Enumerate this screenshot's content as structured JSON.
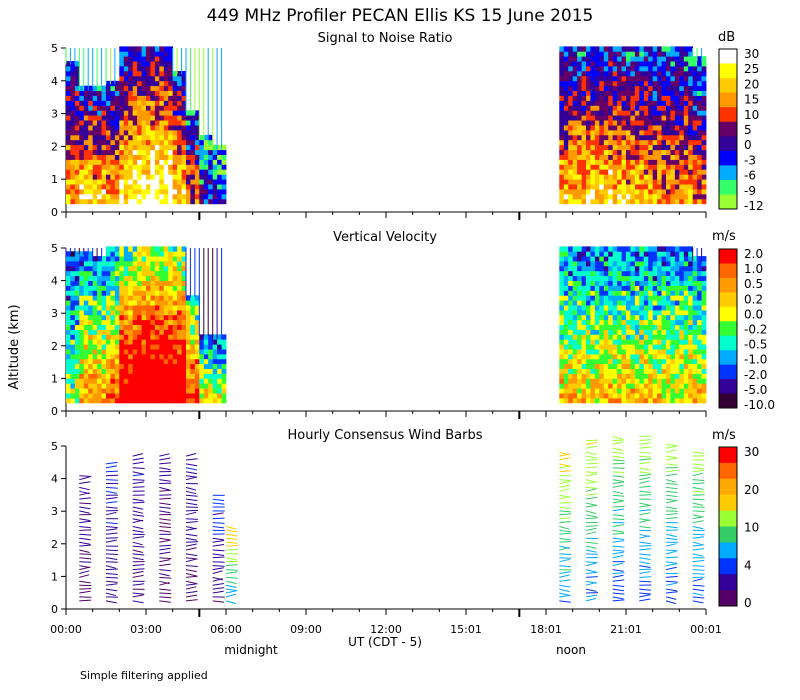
{
  "chart_data": {
    "type": "heatmap",
    "title": "449 MHz Profiler PECAN Ellis KS 15 June 2015",
    "ylabel": "Altitude (km)",
    "xlabel": "UT  (CDT - 5)",
    "x_ticks": [
      "00:00",
      "03:00",
      "06:00",
      "09:00",
      "12:00",
      "15:01",
      "18:01",
      "21:01",
      "00:01"
    ],
    "xlim_hours": [
      0,
      24
    ],
    "ylim_km": [
      0,
      5
    ],
    "y_ticks": [
      "0",
      "1",
      "2",
      "3",
      "4",
      "5"
    ],
    "time_markers": [
      {
        "label": "midnight",
        "hour": 5.0
      },
      {
        "label": "noon",
        "hour": 17.0
      }
    ],
    "footnote": "Simple filtering applied",
    "data_gap_hours": [
      6.0,
      18.5
    ],
    "panels": [
      {
        "title": "Signal to Noise Ratio",
        "units": "dB",
        "colorbar": {
          "labels": [
            "30",
            "25",
            "20",
            "15",
            "10",
            "5",
            "0",
            "-3",
            "-6",
            "-9",
            "-12"
          ],
          "colors": [
            "#ffffff",
            "#ffff00",
            "#ffcc00",
            "#ff9900",
            "#ff3300",
            "#660066",
            "#330099",
            "#0000ff",
            "#00aaff",
            "#33ff66",
            "#99ff33"
          ]
        },
        "profile": [
          {
            "hour": 0.25,
            "top_km": 4.5,
            "mean": 0.55
          },
          {
            "hour": 0.75,
            "top_km": 3.7,
            "mean": 0.62
          },
          {
            "hour": 1.25,
            "top_km": 3.8,
            "mean": 0.58
          },
          {
            "hour": 1.75,
            "top_km": 3.9,
            "mean": 0.55
          },
          {
            "hour": 2.25,
            "top_km": 5.0,
            "mean": 0.62
          },
          {
            "hour": 2.75,
            "top_km": 5.0,
            "mean": 0.68
          },
          {
            "hour": 3.25,
            "top_km": 5.0,
            "mean": 0.72
          },
          {
            "hour": 3.75,
            "top_km": 5.0,
            "mean": 0.7
          },
          {
            "hour": 4.25,
            "top_km": 4.2,
            "mean": 0.6
          },
          {
            "hour": 4.75,
            "top_km": 3.0,
            "mean": 0.45
          },
          {
            "hour": 5.25,
            "top_km": 2.2,
            "mean": 0.3
          },
          {
            "hour": 5.75,
            "top_km": 1.9,
            "mean": 0.25
          },
          {
            "hour": 18.75,
            "top_km": 5.0,
            "mean": 0.55
          },
          {
            "hour": 19.25,
            "top_km": 5.0,
            "mean": 0.58
          },
          {
            "hour": 19.75,
            "top_km": 5.0,
            "mean": 0.6
          },
          {
            "hour": 20.25,
            "top_km": 5.0,
            "mean": 0.6
          },
          {
            "hour": 20.75,
            "top_km": 5.0,
            "mean": 0.58
          },
          {
            "hour": 21.25,
            "top_km": 5.0,
            "mean": 0.55
          },
          {
            "hour": 21.75,
            "top_km": 5.0,
            "mean": 0.55
          },
          {
            "hour": 22.25,
            "top_km": 5.0,
            "mean": 0.52
          },
          {
            "hour": 22.75,
            "top_km": 5.0,
            "mean": 0.5
          },
          {
            "hour": 23.25,
            "top_km": 5.0,
            "mean": 0.5
          },
          {
            "hour": 23.75,
            "top_km": 4.6,
            "mean": 0.45
          }
        ]
      },
      {
        "title": "Vertical Velocity",
        "units": "m/s",
        "colorbar": {
          "labels": [
            "2.0",
            "1.0",
            "0.5",
            "0.2",
            "0.0",
            "-0.2",
            "-0.5",
            "-1.0",
            "-2.0",
            "-5.0",
            "-10.0"
          ],
          "colors": [
            "#ff0000",
            "#ff6600",
            "#ff9900",
            "#ffcc00",
            "#ffff00",
            "#33ff33",
            "#00ffcc",
            "#00aaff",
            "#0033ff",
            "#330099",
            "#330033"
          ]
        },
        "profile": [
          {
            "hour": 0.25,
            "top_km": 4.8,
            "mean": 0.4
          },
          {
            "hour": 0.75,
            "top_km": 4.8,
            "mean": 0.55
          },
          {
            "hour": 1.25,
            "top_km": 4.6,
            "mean": 0.55
          },
          {
            "hour": 1.75,
            "top_km": 5.0,
            "mean": 0.6
          },
          {
            "hour": 2.25,
            "top_km": 5.0,
            "mean": 0.8
          },
          {
            "hour": 2.75,
            "top_km": 5.0,
            "mean": 0.88
          },
          {
            "hour": 3.25,
            "top_km": 5.0,
            "mean": 0.92
          },
          {
            "hour": 3.75,
            "top_km": 5.0,
            "mean": 0.9
          },
          {
            "hour": 4.25,
            "top_km": 5.0,
            "mean": 0.85
          },
          {
            "hour": 4.75,
            "top_km": 3.5,
            "mean": 0.7
          },
          {
            "hour": 5.25,
            "top_km": 2.3,
            "mean": 0.5
          },
          {
            "hour": 5.75,
            "top_km": 2.2,
            "mean": 0.45
          },
          {
            "hour": 18.75,
            "top_km": 5.0,
            "mean": 0.5
          },
          {
            "hour": 19.25,
            "top_km": 5.0,
            "mean": 0.5
          },
          {
            "hour": 19.75,
            "top_km": 5.0,
            "mean": 0.48
          },
          {
            "hour": 20.25,
            "top_km": 5.0,
            "mean": 0.5
          },
          {
            "hour": 20.75,
            "top_km": 5.0,
            "mean": 0.5
          },
          {
            "hour": 21.25,
            "top_km": 5.0,
            "mean": 0.5
          },
          {
            "hour": 21.75,
            "top_km": 5.0,
            "mean": 0.5
          },
          {
            "hour": 22.25,
            "top_km": 5.0,
            "mean": 0.48
          },
          {
            "hour": 22.75,
            "top_km": 5.0,
            "mean": 0.48
          },
          {
            "hour": 23.25,
            "top_km": 5.0,
            "mean": 0.5
          },
          {
            "hour": 23.75,
            "top_km": 4.6,
            "mean": 0.5
          }
        ]
      },
      {
        "title": "Hourly Consensus Wind Barbs",
        "units": "m/s",
        "colorbar": {
          "labels": [
            "30",
            "20",
            "10",
            "4",
            "0"
          ],
          "colors": [
            "#ff0000",
            "#ff6600",
            "#ffaa00",
            "#ffcc00",
            "#99ff33",
            "#33cc66",
            "#00aaff",
            "#0033ff",
            "#330099",
            "#550066"
          ]
        },
        "barb_columns": [
          {
            "hour": 0.5,
            "top_km": 4.2,
            "speed_ms": 3
          },
          {
            "hour": 1.5,
            "top_km": 4.5,
            "speed_ms": 5
          },
          {
            "hour": 2.5,
            "top_km": 4.8,
            "speed_ms": 4
          },
          {
            "hour": 3.5,
            "top_km": 4.7,
            "speed_ms": 3
          },
          {
            "hour": 4.5,
            "top_km": 4.8,
            "speed_ms": 4
          },
          {
            "hour": 5.5,
            "top_km": 3.6,
            "speed_ms": 5
          },
          {
            "hour": 6.0,
            "top_km": 2.6,
            "speed_ms": 15
          },
          {
            "hour": 18.5,
            "top_km": 4.9,
            "speed_ms": 14
          },
          {
            "hour": 19.5,
            "top_km": 5.2,
            "speed_ms": 13
          },
          {
            "hour": 20.5,
            "top_km": 5.3,
            "speed_ms": 12
          },
          {
            "hour": 21.5,
            "top_km": 5.3,
            "speed_ms": 12
          },
          {
            "hour": 22.5,
            "top_km": 5.1,
            "speed_ms": 12
          },
          {
            "hour": 23.5,
            "top_km": 4.9,
            "speed_ms": 12
          }
        ]
      }
    ]
  }
}
